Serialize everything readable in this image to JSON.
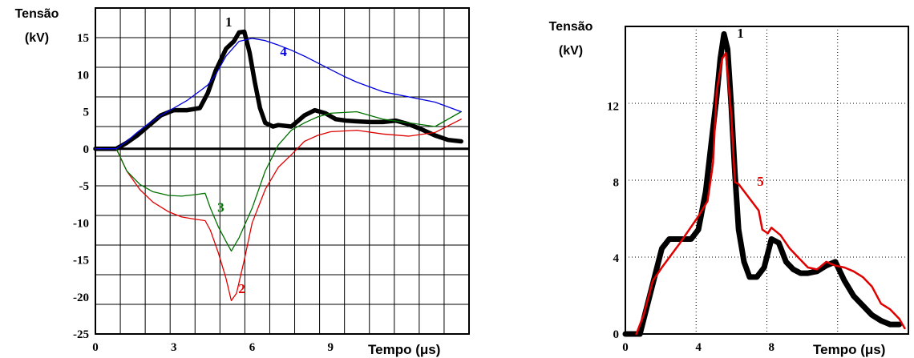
{
  "chart_data": [
    {
      "type": "line",
      "ylabel": "Tensão\n(kV)",
      "xlabel": "Tempo",
      "xunit": "(μs)",
      "xlim": [
        0,
        14.3
      ],
      "ylim": [
        -25,
        19
      ],
      "xticks": [
        0,
        3,
        6,
        9
      ],
      "xtick_labels": [
        "0",
        "3",
        "6",
        "9"
      ],
      "yticks": [
        15,
        10,
        5,
        0,
        -5,
        -10,
        -15,
        -20,
        -25
      ],
      "ytick_labels": [
        "15",
        "10",
        "5",
        "0",
        "-5",
        "-10",
        "-15",
        "-20",
        "-25"
      ],
      "grid": true,
      "series": [
        {
          "name": "1",
          "color": "#000000",
          "x": [
            0,
            0.8,
            1.2,
            1.6,
            2.0,
            2.5,
            3.0,
            3.5,
            4.0,
            4.3,
            4.6,
            4.8,
            5.0,
            5.3,
            5.5,
            5.7,
            5.9,
            6.1,
            6.3,
            6.5,
            6.8,
            7.0,
            7.5,
            8.0,
            8.4,
            8.8,
            9.2,
            9.6,
            10.0,
            10.5,
            11.0,
            11.5,
            12.0,
            12.5,
            13.0,
            13.5,
            14.0
          ],
          "y": [
            0,
            0,
            0.8,
            1.8,
            3.0,
            4.5,
            5.2,
            5.2,
            5.5,
            7.5,
            10.5,
            12.0,
            13.5,
            14.5,
            15.7,
            15.8,
            13.0,
            9.0,
            5.5,
            3.5,
            3.0,
            3.2,
            3.0,
            4.5,
            5.2,
            4.8,
            4.0,
            3.8,
            3.7,
            3.6,
            3.6,
            3.8,
            3.3,
            2.6,
            1.8,
            1.2,
            1.0
          ]
        },
        {
          "name": "2",
          "color": "#e00000",
          "x": [
            0,
            0.8,
            1.2,
            1.7,
            2.2,
            2.8,
            3.3,
            3.8,
            4.2,
            4.4,
            4.7,
            5.0,
            5.2,
            5.4,
            5.7,
            6.0,
            6.5,
            7.0,
            7.5,
            8.0,
            8.5,
            9.0,
            10.0,
            11.0,
            12.0,
            13.0,
            14.0
          ],
          "y": [
            0,
            0,
            -3.0,
            -5.5,
            -7.2,
            -8.5,
            -9.2,
            -9.5,
            -9.7,
            -11.0,
            -14.0,
            -17.5,
            -20.5,
            -19.5,
            -15.0,
            -10.0,
            -5.5,
            -2.5,
            -0.8,
            1.0,
            1.8,
            2.3,
            2.5,
            2.0,
            1.7,
            2.2,
            4.0
          ]
        },
        {
          "name": "3",
          "color": "#007000",
          "x": [
            0,
            0.8,
            1.2,
            1.7,
            2.2,
            2.8,
            3.3,
            3.8,
            4.2,
            4.4,
            4.7,
            5.0,
            5.2,
            5.5,
            6.0,
            6.5,
            7.0,
            7.5,
            8.0,
            8.5,
            9.0,
            10.0,
            11.0,
            12.0,
            13.0,
            14.0
          ],
          "y": [
            0,
            0,
            -3.0,
            -4.8,
            -5.8,
            -6.3,
            -6.4,
            -6.2,
            -6.0,
            -8.0,
            -10.5,
            -12.5,
            -13.8,
            -12.0,
            -8.0,
            -3.0,
            0.5,
            2.5,
            3.5,
            4.3,
            4.8,
            5.0,
            4.0,
            3.5,
            3.0,
            5.0
          ]
        },
        {
          "name": "4",
          "color": "#0000e0",
          "x": [
            0,
            0.8,
            1.2,
            1.6,
            2.0,
            2.5,
            3.0,
            3.5,
            4.0,
            4.3,
            4.6,
            5.0,
            5.5,
            6.0,
            6.5,
            7.0,
            7.5,
            8.0,
            8.5,
            9.0,
            9.5,
            10.0,
            11.0,
            12.0,
            13.0,
            14.0
          ],
          "y": [
            0,
            0,
            1.0,
            2.2,
            3.3,
            4.5,
            5.5,
            6.5,
            7.8,
            8.6,
            10.0,
            12.5,
            14.5,
            14.9,
            14.6,
            14.0,
            13.3,
            12.5,
            11.6,
            10.7,
            9.8,
            9.0,
            7.7,
            7.0,
            6.3,
            5.0
          ]
        }
      ],
      "annotations": [
        {
          "text": "1",
          "x": 5.1,
          "y": 16.5,
          "color": "#000000"
        },
        {
          "text": "4",
          "x": 7.2,
          "y": 12.5,
          "color": "#0000e0"
        },
        {
          "text": "3",
          "x": 4.8,
          "y": -8.5,
          "color": "#007000"
        },
        {
          "text": "2",
          "x": 5.6,
          "y": -19.5,
          "color": "#e00000"
        }
      ]
    },
    {
      "type": "line",
      "ylabel": "Tensão\n(kV)",
      "xlabel": "Tempo",
      "xunit": "(μs)",
      "xlim": [
        0,
        15.5
      ],
      "ylim": [
        0,
        16.2
      ],
      "xticks": [
        0,
        4,
        8
      ],
      "xtick_labels": [
        "0",
        "4",
        "8"
      ],
      "yticks": [
        12,
        8,
        4,
        0
      ],
      "ytick_labels": [
        "12",
        "8",
        "4",
        "0"
      ],
      "grid": true,
      "series": [
        {
          "name": "1",
          "color": "#000000",
          "x": [
            0,
            0.8,
            1.2,
            1.6,
            2.0,
            2.4,
            2.8,
            3.2,
            3.6,
            4.0,
            4.4,
            4.7,
            5.0,
            5.2,
            5.4,
            5.6,
            5.8,
            6.0,
            6.2,
            6.5,
            6.8,
            7.2,
            7.6,
            8.0,
            8.4,
            8.8,
            9.2,
            9.6,
            10.0,
            10.5,
            11.0,
            11.5,
            12.0,
            12.5,
            13.0,
            13.5,
            14.0,
            14.5,
            15.0
          ],
          "y": [
            0,
            0,
            1.5,
            3.0,
            4.5,
            5.0,
            5.0,
            5.0,
            5.0,
            5.5,
            7.5,
            10.0,
            12.5,
            14.5,
            15.8,
            15.0,
            12.0,
            8.5,
            5.5,
            3.8,
            3.0,
            3.0,
            3.5,
            5.0,
            4.8,
            3.8,
            3.4,
            3.2,
            3.2,
            3.3,
            3.6,
            3.8,
            2.8,
            2.0,
            1.5,
            1.0,
            0.7,
            0.5,
            0.5
          ]
        },
        {
          "name": "5",
          "color": "#e00000",
          "x": [
            0.6,
            1.0,
            1.5,
            2.0,
            3.0,
            4.0,
            4.5,
            4.8,
            5.0,
            5.3,
            5.5,
            5.8,
            6.0,
            6.2,
            7.3,
            7.5,
            7.8,
            8.0,
            8.5,
            9.0,
            9.5,
            10.0,
            10.5,
            11.0,
            11.5,
            12.0,
            12.5,
            13.0,
            13.5,
            14.0,
            14.5,
            15.0,
            15.3
          ],
          "y": [
            0,
            1.0,
            2.8,
            3.5,
            4.8,
            6.2,
            7.0,
            9.0,
            12.8,
            14.5,
            14.8,
            11.5,
            8.0,
            7.9,
            6.5,
            5.5,
            5.3,
            5.6,
            5.2,
            4.5,
            4.0,
            3.5,
            3.4,
            3.8,
            3.6,
            3.5,
            3.3,
            3.0,
            2.5,
            1.6,
            1.3,
            0.8,
            0.3
          ]
        }
      ],
      "annotations": [
        {
          "text": "1",
          "x": 6.3,
          "y": 15.6,
          "color": "#000000"
        },
        {
          "text": "5",
          "x": 7.4,
          "y": 7.8,
          "color": "#e00000"
        }
      ]
    }
  ]
}
